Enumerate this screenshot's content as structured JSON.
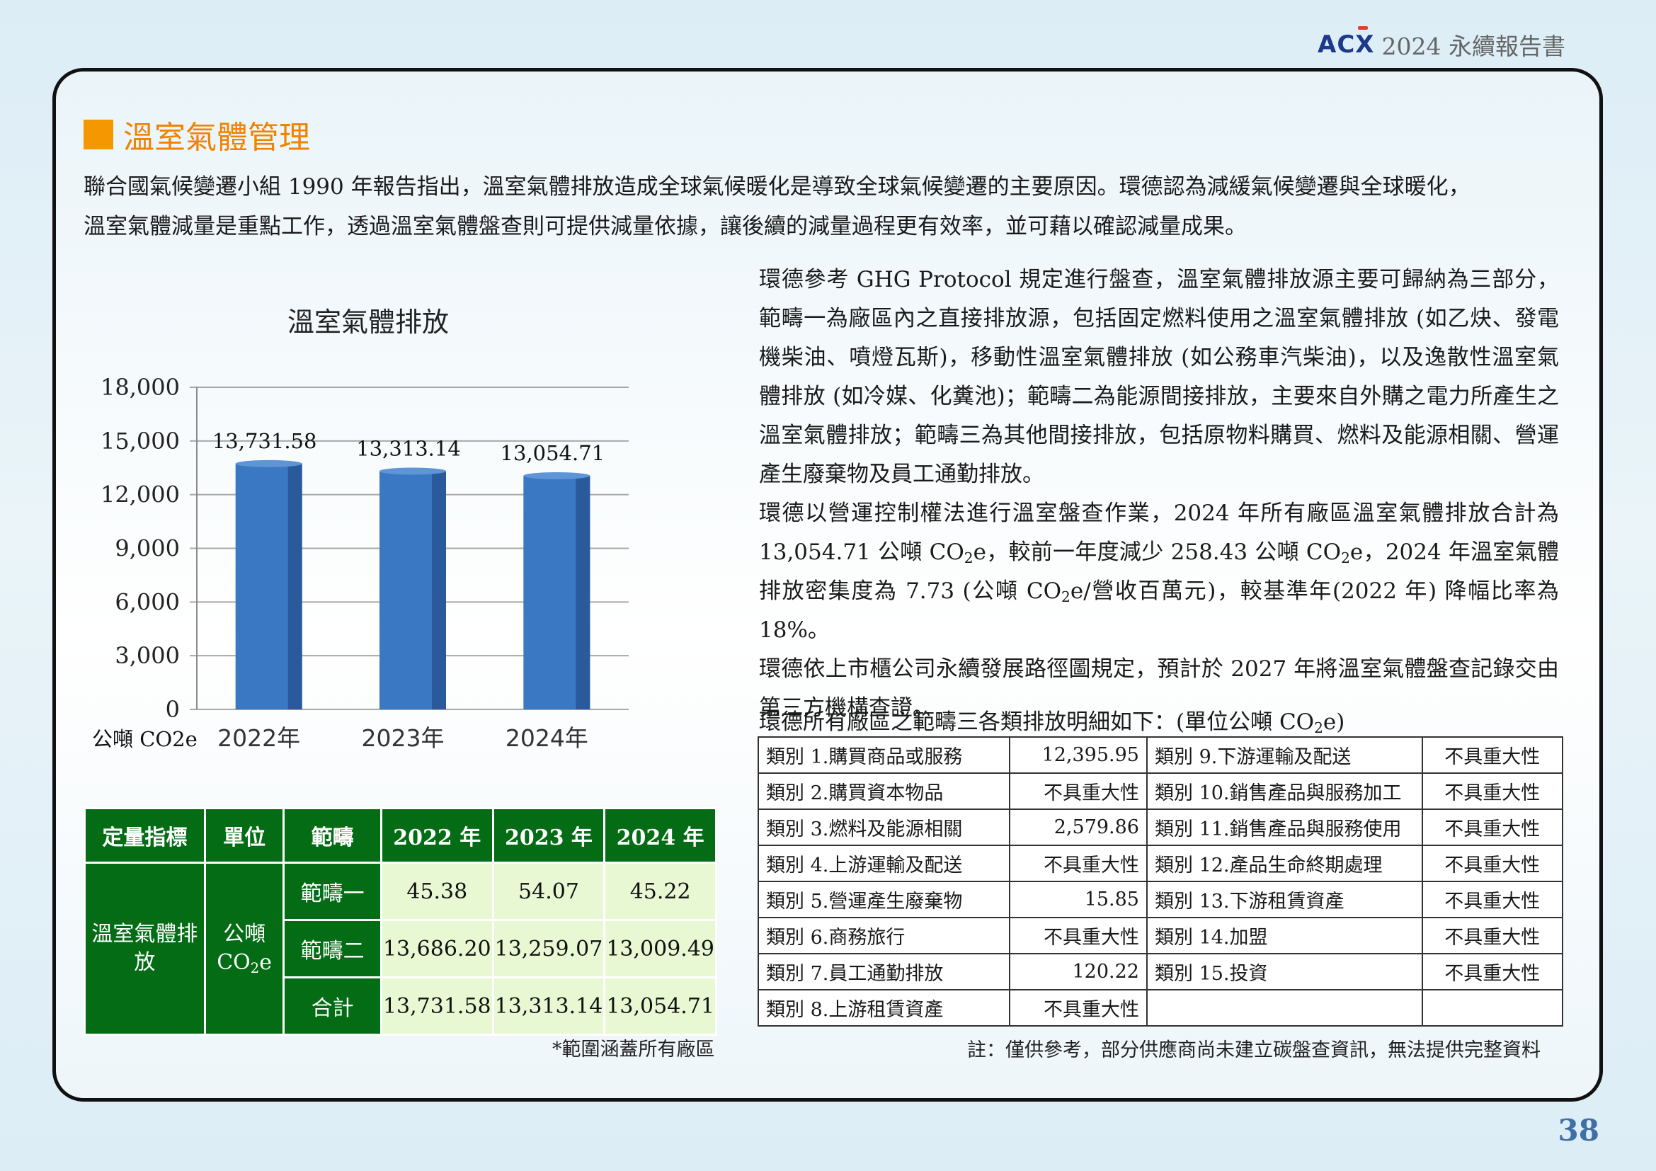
{
  "header": {
    "logo": "ACX",
    "title": "2024 永續報告書"
  },
  "section": {
    "title": "溫室氣體管理"
  },
  "intro": [
    "聯合國氣候變遷小組 1990 年報告指出，溫室氣體排放造成全球氣候暖化是導致全球氣候變遷的主要原因。環德認為減緩氣候變遷與全球暖化，",
    "溫室氣體減量是重點工作，透過溫室氣體盤查則可提供減量依據，讓後續的減量過程更有效率，並可藉以確認減量成果。"
  ],
  "chart_data": {
    "type": "bar",
    "title": "溫室氣體排放",
    "categories": [
      "2022年",
      "2023年",
      "2024年"
    ],
    "values": [
      13731.58,
      13313.14,
      13054.71
    ],
    "data_labels": [
      "13,731.58",
      "13,313.14",
      "13,054.71"
    ],
    "ylabel": "公噸 CO2e",
    "ylim": [
      0,
      18000
    ],
    "yticks": [
      "0",
      "3,000",
      "6,000",
      "9,000",
      "12,000",
      "15,000",
      "18,000"
    ],
    "grid": true,
    "colors": {
      "bar": "#3b78c4",
      "bar_side": "#2a5a9c",
      "bar_top": "#5d95d6"
    }
  },
  "quant_table": {
    "headers": [
      "定量指標",
      "單位",
      "範疇",
      "2022 年",
      "2023 年",
      "2024 年"
    ],
    "indicator": "溫室氣體排放",
    "unit_line1": "公噸",
    "unit_line2": "CO",
    "unit_sub": "2",
    "unit_tail": "e",
    "rows": [
      {
        "scope": "範疇一",
        "v2022": "45.38",
        "v2023": "54.07",
        "v2024": "45.22"
      },
      {
        "scope": "範疇二",
        "v2022": "13,686.20",
        "v2023": "13,259.07",
        "v2024": "13,009.49"
      },
      {
        "scope": "合計",
        "v2022": "13,731.58",
        "v2023": "13,313.14",
        "v2024": "13,054.71"
      }
    ],
    "note": "*範圍涵蓋所有廠區"
  },
  "right_text": {
    "p1": "環德參考 GHG Protocol 規定進行盤查，溫室氣體排放源主要可歸納為三部分，範疇一為廠區內之直接排放源，包括固定燃料使用之溫室氣體排放 (如乙炔、發電機柴油、噴燈瓦斯)，移動性溫室氣體排放 (如公務車汽柴油)，以及逸散性溫室氣體排放 (如冷媒、化糞池)；範疇二為能源間接排放，主要來自外購之電力所產生之溫室氣體排放；範疇三為其他間接排放，包括原物料購買、燃料及能源相關、營運產生廢棄物及員工通勤排放。",
    "p2_a": "環德以營運控制權法進行溫室盤查作業，2024 年所有廠區溫室氣體排放合計為 13,054.71 公噸 CO",
    "p2_b": "e，較前一年度減少 258.43 公噸 CO",
    "p2_c": "e，2024 年溫室氣體排放密集度為 7.73 (公噸 CO",
    "p2_d": "e/營收百萬元)，較基準年(2022 年) 降幅比率為 18%。",
    "p3": "環德依上市櫃公司永續發展路徑圖規定，預計於 2027 年將溫室氣體盤查記錄交由第三方機構查證。",
    "sub2": "2"
  },
  "category_table": {
    "caption_a": "環德所有廠區之範疇三各類排放明細如下：(單位公噸 CO",
    "caption_sub": "2",
    "caption_b": "e)",
    "rows": [
      {
        "l_name": "類別 1.購買商品或服務",
        "l_val": "12,395.95",
        "r_name": "類別 9.下游運輸及配送",
        "r_val": "不具重大性"
      },
      {
        "l_name": "類別 2.購買資本物品",
        "l_val": "不具重大性",
        "r_name": "類別 10.銷售產品與服務加工",
        "r_val": "不具重大性"
      },
      {
        "l_name": "類別 3.燃料及能源相關",
        "l_val": "2,579.86",
        "r_name": "類別 11.銷售產品與服務使用",
        "r_val": "不具重大性"
      },
      {
        "l_name": "類別 4.上游運輸及配送",
        "l_val": "不具重大性",
        "r_name": "類別 12.產品生命終期處理",
        "r_val": "不具重大性"
      },
      {
        "l_name": "類別 5.營運產生廢棄物",
        "l_val": "15.85",
        "r_name": "類別 13.下游租賃資產",
        "r_val": "不具重大性"
      },
      {
        "l_name": "類別 6.商務旅行",
        "l_val": "不具重大性",
        "r_name": "類別 14.加盟",
        "r_val": "不具重大性"
      },
      {
        "l_name": "類別 7.員工通勤排放",
        "l_val": "120.22",
        "r_name": "類別 15.投資",
        "r_val": "不具重大性"
      },
      {
        "l_name": "類別 8.上游租賃資產",
        "l_val": "不具重大性",
        "r_name": "",
        "r_val": ""
      }
    ],
    "note": "註：僅供參考，部分供應商尚未建立碳盤查資訊，無法提供完整資料"
  },
  "page_number": "38"
}
